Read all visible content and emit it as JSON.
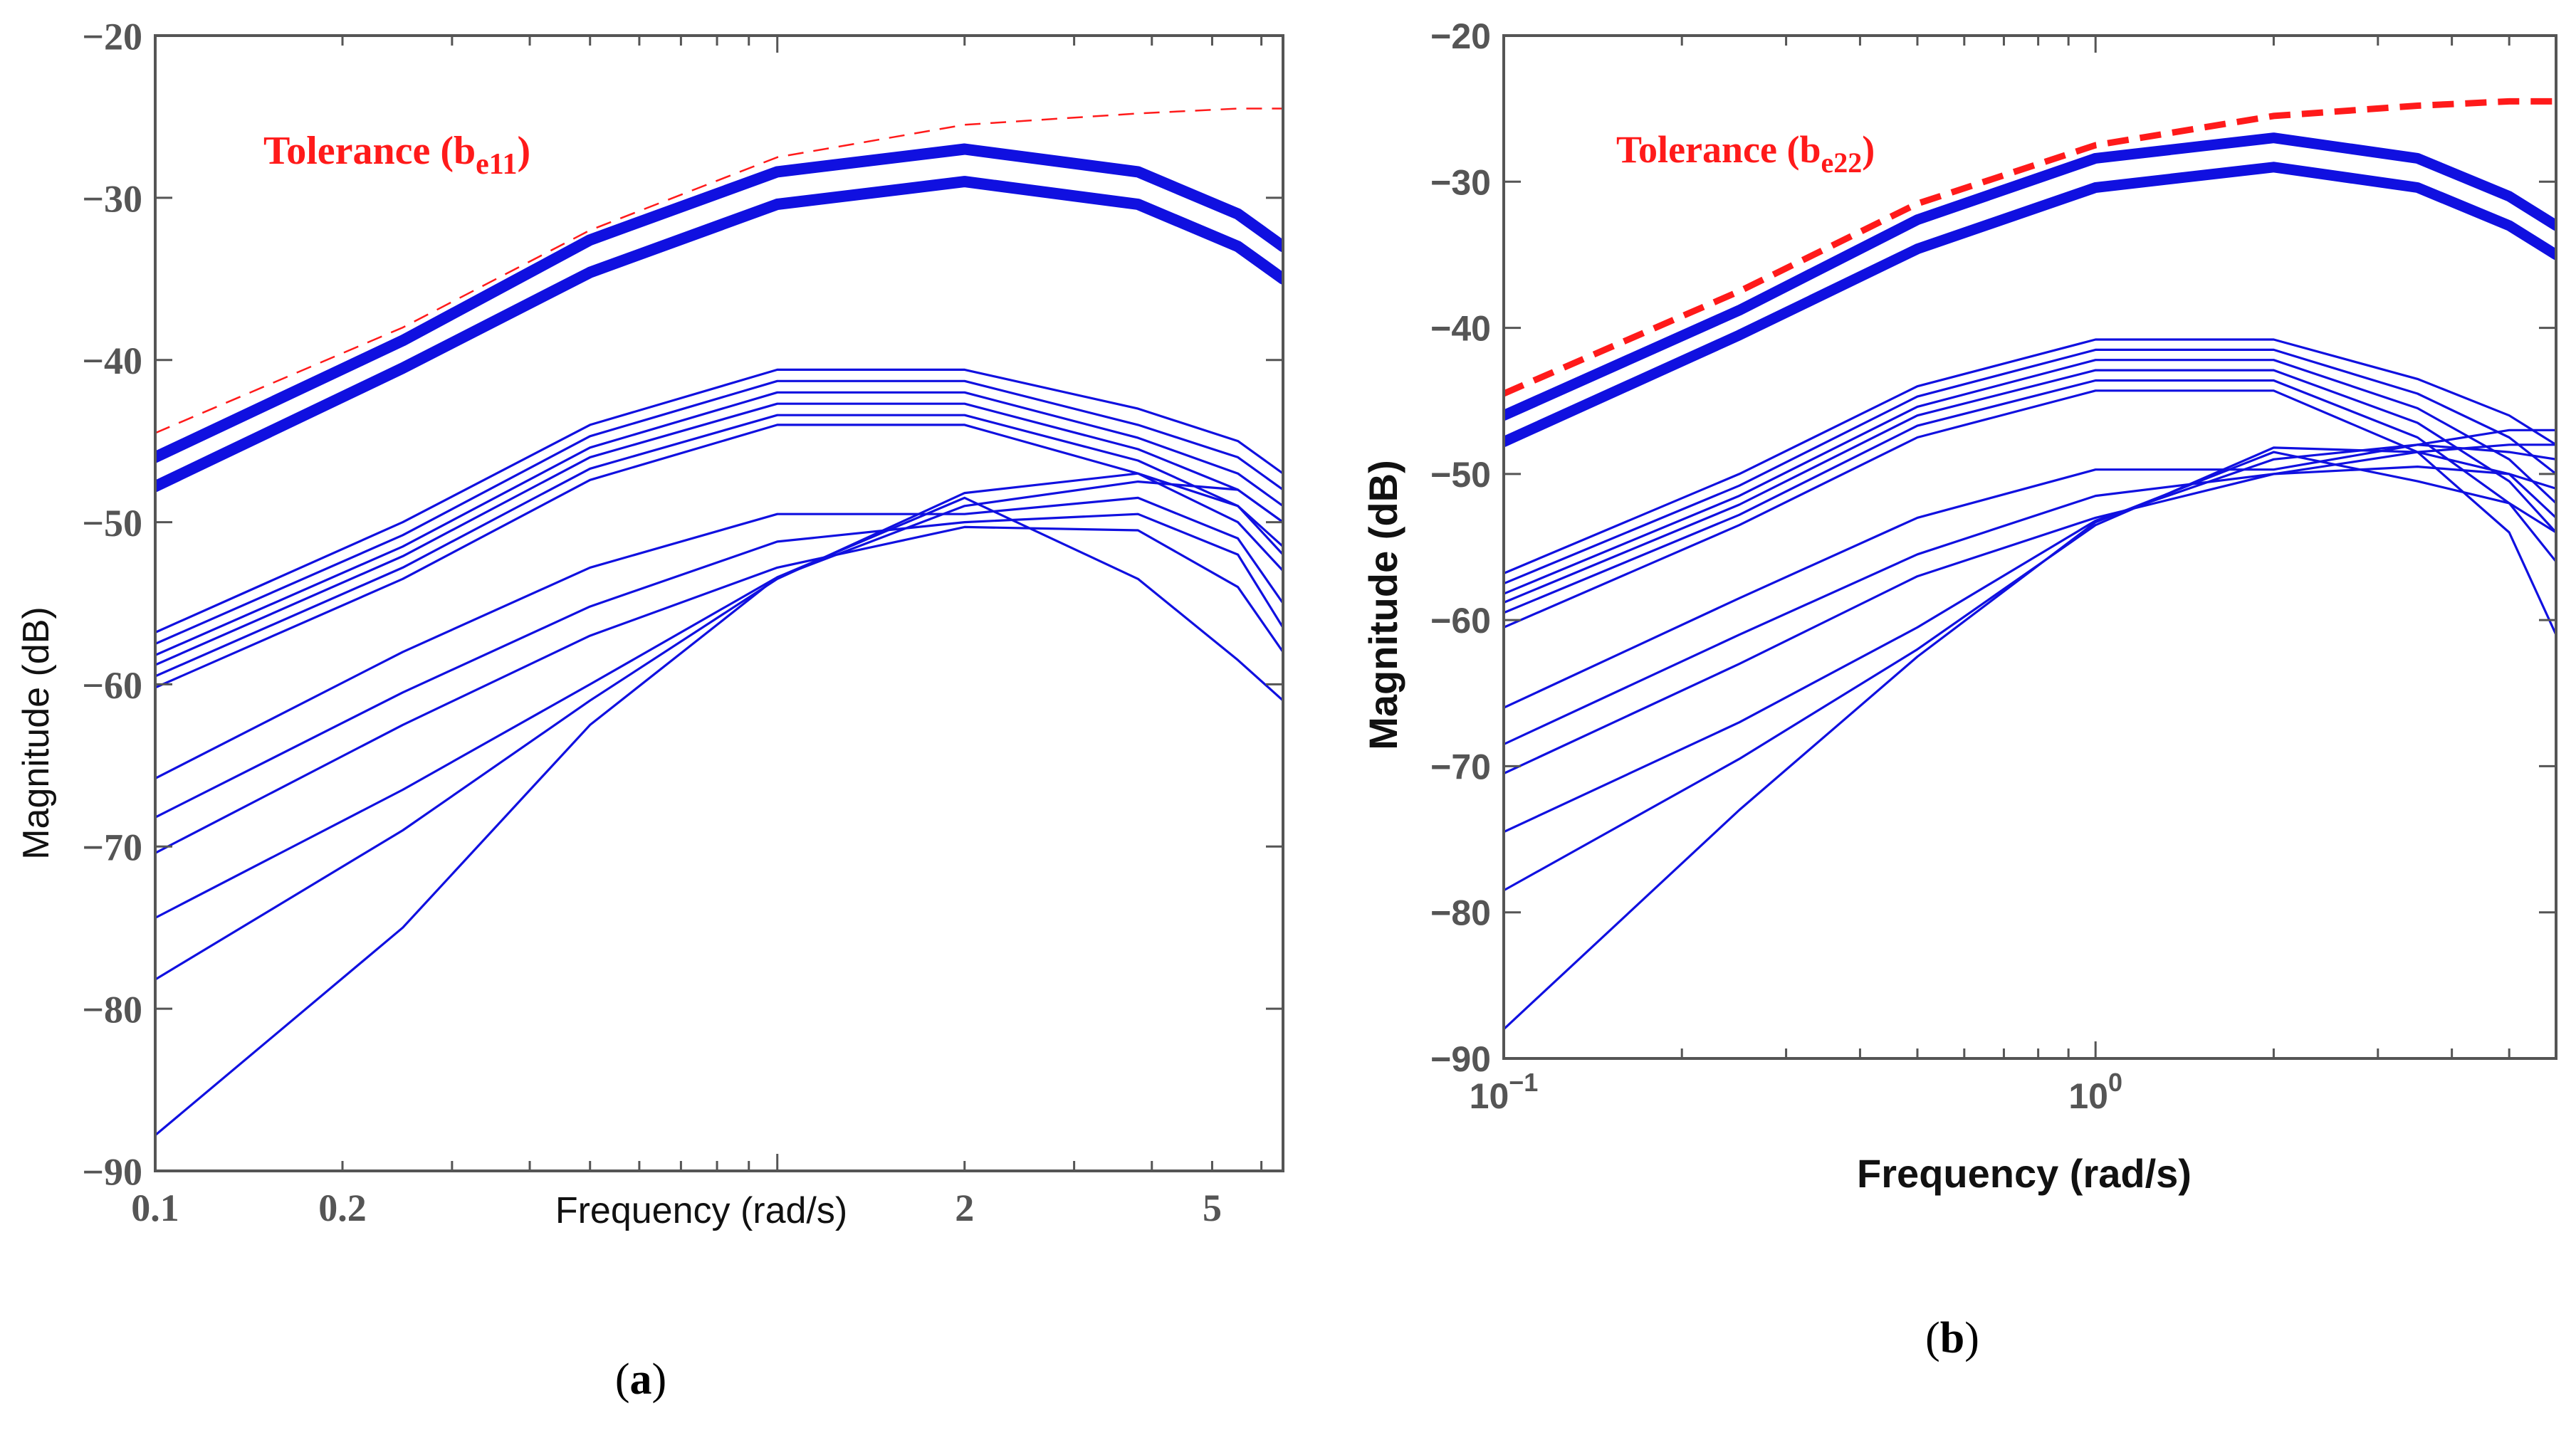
{
  "colors": {
    "band": "#1010e0",
    "tolerance": "#ff1a1a",
    "axis": "#555555",
    "text": "#111111"
  },
  "chart_data": [
    {
      "panel": "a",
      "type": "line",
      "caption_letter": "a",
      "caption_open": "(",
      "caption_close": ")",
      "xscale": "log",
      "xlim": [
        0.1,
        6.5
      ],
      "ylim": [
        -90,
        -20
      ],
      "xlabel": "Frequency  (rad/s)",
      "ylabel": "Magnitude (dB)",
      "x_ticks": [
        0.1,
        0.2,
        2,
        5
      ],
      "x_tick_labels": [
        "0.1",
        "0.2",
        "2",
        "5"
      ],
      "y_ticks": [
        -20,
        -30,
        -40,
        -50,
        -60,
        -70,
        -80,
        -90
      ],
      "y_tick_labels": [
        "−20",
        "−30",
        "−40",
        "−50",
        "−60",
        "−70",
        "−80",
        "−90"
      ],
      "annotation": {
        "prefix": "Tolerance (b",
        "sub": "e11",
        "suffix": ")",
        "location": "upper-left"
      },
      "x": [
        0.1,
        0.25,
        0.5,
        1.0,
        2.0,
        3.8,
        5.5,
        6.5
      ],
      "tolerance": {
        "name": "Tolerance (b_e11)",
        "style": "thin-dashed",
        "values": [
          -44.5,
          -38,
          -32,
          -27.5,
          -25.5,
          -24.8,
          -24.5,
          -24.5
        ]
      },
      "series": [
        {
          "name": "thick-upper",
          "width": "thick",
          "values": [
            -46,
            -38.8,
            -32.6,
            -28.4,
            -27,
            -28.4,
            -31,
            -33
          ]
        },
        {
          "name": "thick-lower",
          "width": "thick",
          "values": [
            -47.8,
            -40.5,
            -34.6,
            -30.4,
            -29,
            -30.4,
            -33,
            -35
          ]
        },
        {
          "name": "g1-1",
          "values": [
            -56.8,
            -50,
            -44,
            -40.6,
            -40.6,
            -43,
            -45,
            -47
          ]
        },
        {
          "name": "g1-2",
          "values": [
            -57.5,
            -50.8,
            -44.7,
            -41.3,
            -41.3,
            -44,
            -46,
            -48
          ]
        },
        {
          "name": "g1-3",
          "values": [
            -58.2,
            -51.5,
            -45.4,
            -42,
            -42,
            -44.8,
            -47,
            -49
          ]
        },
        {
          "name": "g1-4",
          "values": [
            -58.8,
            -52.1,
            -46,
            -42.7,
            -42.7,
            -45.5,
            -48,
            -50
          ]
        },
        {
          "name": "g1-5",
          "values": [
            -59.5,
            -52.8,
            -46.7,
            -43.4,
            -43.4,
            -46.2,
            -49,
            -51.5
          ]
        },
        {
          "name": "g1-6",
          "values": [
            -60.2,
            -53.5,
            -47.4,
            -44,
            -44,
            -47,
            -50,
            -53
          ]
        },
        {
          "name": "g2-1",
          "values": [
            -65.8,
            -58,
            -52.8,
            -49.5,
            -49.5,
            -48.5,
            -51,
            -55
          ]
        },
        {
          "name": "g2-2",
          "values": [
            -68.2,
            -60.5,
            -55.2,
            -51.2,
            -50,
            -49.5,
            -52,
            -56.5
          ]
        },
        {
          "name": "g2-3",
          "values": [
            -70.4,
            -62.5,
            -57,
            -52.8,
            -50.3,
            -50.5,
            -54,
            -58
          ]
        },
        {
          "name": "g2-4",
          "values": [
            -74.4,
            -66.5,
            -60,
            -53.4,
            -49,
            -47.5,
            -48,
            -50
          ]
        },
        {
          "name": "g2-5",
          "values": [
            -78.2,
            -69,
            -61,
            -53.5,
            -48.2,
            -47,
            -49,
            -52
          ]
        },
        {
          "name": "g2-6",
          "values": [
            -87.8,
            -75,
            -62.5,
            -53.4,
            -48.5,
            -53.5,
            -58.5,
            -61
          ]
        }
      ]
    },
    {
      "panel": "b",
      "type": "line",
      "caption_letter": "b",
      "caption_open": "(",
      "caption_close": ")",
      "xscale": "log",
      "xlim": [
        0.1,
        6.0
      ],
      "ylim": [
        -90,
        -20
      ],
      "xlabel": "Frequency  (rad/s)",
      "ylabel": "Magnitude (dB)",
      "x_ticks": [
        0.1,
        1
      ],
      "x_tick_labels": [
        {
          "base": "10",
          "exp": "−1"
        },
        {
          "base": "10",
          "exp": "0"
        }
      ],
      "y_ticks": [
        -20,
        -30,
        -40,
        -50,
        -60,
        -70,
        -80,
        -90
      ],
      "y_tick_labels": [
        "−20",
        "−30",
        "−40",
        "−50",
        "−60",
        "−70",
        "−80",
        "−90"
      ],
      "annotation": {
        "prefix": "Tolerance (b",
        "sub": "e22",
        "suffix": ")",
        "location": "upper-left"
      },
      "x": [
        0.1,
        0.25,
        0.5,
        1.0,
        2.0,
        3.5,
        5.0,
        6.0
      ],
      "tolerance": {
        "name": "Tolerance (b_e22)",
        "style": "thick-dashed",
        "values": [
          -44.5,
          -37.5,
          -31.5,
          -27.5,
          -25.5,
          -24.8,
          -24.5,
          -24.5
        ]
      },
      "series": [
        {
          "name": "thick-upper",
          "width": "thick",
          "values": [
            -46,
            -38.8,
            -32.6,
            -28.4,
            -27,
            -28.4,
            -31,
            -33
          ]
        },
        {
          "name": "thick-lower",
          "width": "thick",
          "values": [
            -47.8,
            -40.5,
            -34.6,
            -30.4,
            -29,
            -30.4,
            -33,
            -35
          ]
        },
        {
          "name": "g1-1",
          "values": [
            -56.8,
            -50,
            -44,
            -40.8,
            -40.8,
            -43.5,
            -46,
            -48
          ]
        },
        {
          "name": "g1-2",
          "values": [
            -57.5,
            -50.8,
            -44.7,
            -41.5,
            -41.5,
            -44.5,
            -47.5,
            -50
          ]
        },
        {
          "name": "g1-3",
          "values": [
            -58.2,
            -51.5,
            -45.4,
            -42.2,
            -42.2,
            -45.5,
            -49,
            -52
          ]
        },
        {
          "name": "g1-4",
          "values": [
            -58.8,
            -52.1,
            -46,
            -42.9,
            -42.9,
            -46.5,
            -50.5,
            -54
          ]
        },
        {
          "name": "g1-5",
          "values": [
            -59.5,
            -52.8,
            -46.7,
            -43.6,
            -43.6,
            -47.5,
            -52,
            -56
          ]
        },
        {
          "name": "g1-6",
          "values": [
            -60.5,
            -53.5,
            -47.5,
            -44.3,
            -44.3,
            -48.5,
            -54,
            -61
          ]
        },
        {
          "name": "g2-1",
          "values": [
            -66,
            -58.5,
            -53,
            -49.7,
            -49.7,
            -48,
            -47,
            -47
          ]
        },
        {
          "name": "g2-2",
          "values": [
            -68.5,
            -61,
            -55.5,
            -51.5,
            -50,
            -48.5,
            -48,
            -48
          ]
        },
        {
          "name": "g2-3",
          "values": [
            -70.5,
            -63,
            -57,
            -53,
            -50,
            -49.5,
            -50,
            -51
          ]
        },
        {
          "name": "g2-4",
          "values": [
            -74.5,
            -67,
            -60.5,
            -53.2,
            -49,
            -48,
            -48.5,
            -49
          ]
        },
        {
          "name": "g2-5",
          "values": [
            -78.5,
            -69.5,
            -62,
            -53.5,
            -48.2,
            -48.5,
            -50,
            -53
          ]
        },
        {
          "name": "g2-6",
          "values": [
            -88,
            -73,
            -62.5,
            -53.3,
            -48.5,
            -50.5,
            -52,
            -54
          ]
        }
      ]
    }
  ]
}
